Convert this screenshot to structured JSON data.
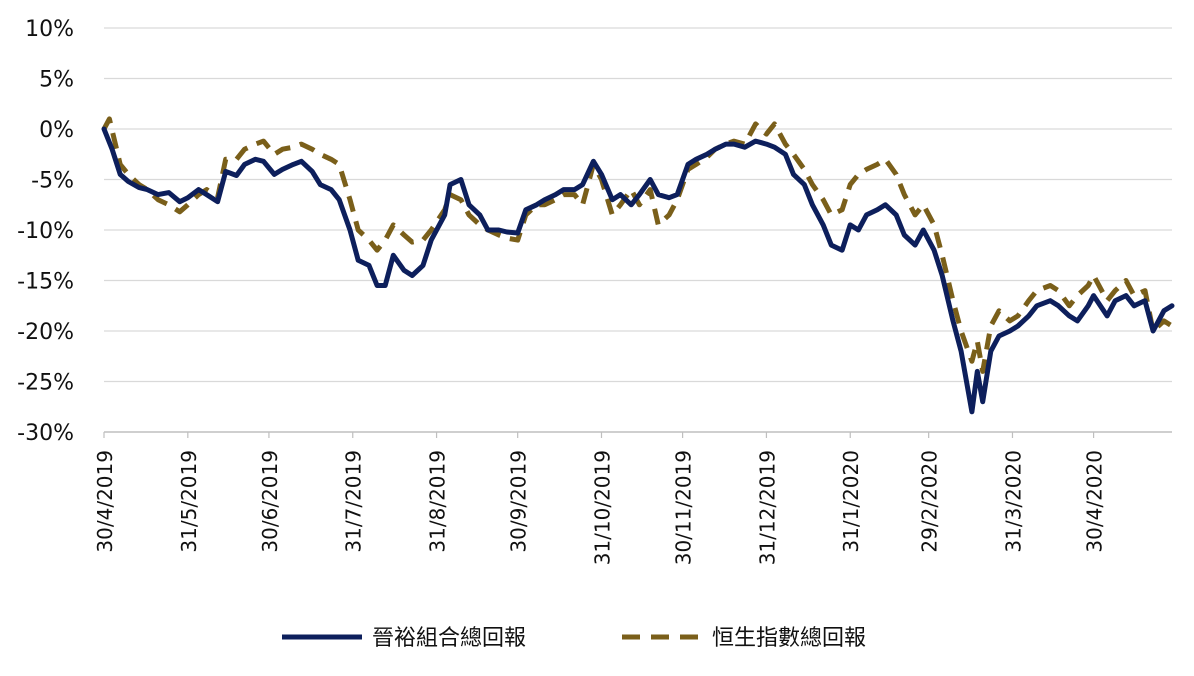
{
  "chart_data": {
    "type": "line",
    "title": "",
    "xlabel": "",
    "ylabel": "",
    "y_unit": "%",
    "ylim": [
      -30,
      10
    ],
    "yticks": [
      10,
      5,
      0,
      -5,
      -10,
      -15,
      -20,
      -25,
      -30
    ],
    "ytick_labels": [
      "10%",
      "5%",
      "0%",
      "-5%",
      "-10%",
      "-15%",
      "-20%",
      "-25%",
      "-30%"
    ],
    "grid": "horizontal",
    "legend_position": "bottom-center",
    "x_tick_labels": [
      "30/4/2019",
      "31/5/2019",
      "30/6/2019",
      "31/7/2019",
      "31/8/2019",
      "30/9/2019",
      "31/10/2019",
      "30/11/2019",
      "31/12/2019",
      "31/1/2020",
      "29/2/2020",
      "31/3/2020",
      "30/4/2020"
    ],
    "x_start": "2019-04-30",
    "x_end": "2020-05-29",
    "series": [
      {
        "name": "晉裕組合總回報",
        "color": "#0d1f5c",
        "style": "solid",
        "points": [
          [
            "2019-04-30",
            0
          ],
          [
            "2019-05-03",
            -2
          ],
          [
            "2019-05-06",
            -4.5
          ],
          [
            "2019-05-09",
            -5.2
          ],
          [
            "2019-05-13",
            -5.8
          ],
          [
            "2019-05-16",
            -6
          ],
          [
            "2019-05-20",
            -6.5
          ],
          [
            "2019-05-24",
            -6.3
          ],
          [
            "2019-05-28",
            -7.2
          ],
          [
            "2019-05-31",
            -6.8
          ],
          [
            "2019-06-04",
            -6
          ],
          [
            "2019-06-07",
            -6.5
          ],
          [
            "2019-06-11",
            -7.2
          ],
          [
            "2019-06-14",
            -4.2
          ],
          [
            "2019-06-18",
            -4.6
          ],
          [
            "2019-06-21",
            -3.5
          ],
          [
            "2019-06-25",
            -3
          ],
          [
            "2019-06-28",
            -3.2
          ],
          [
            "2019-07-02",
            -4.5
          ],
          [
            "2019-07-05",
            -4
          ],
          [
            "2019-07-09",
            -3.5
          ],
          [
            "2019-07-12",
            -3.2
          ],
          [
            "2019-07-16",
            -4.2
          ],
          [
            "2019-07-19",
            -5.5
          ],
          [
            "2019-07-23",
            -6
          ],
          [
            "2019-07-26",
            -7
          ],
          [
            "2019-07-30",
            -10
          ],
          [
            "2019-08-02",
            -13
          ],
          [
            "2019-08-06",
            -13.5
          ],
          [
            "2019-08-09",
            -15.5
          ],
          [
            "2019-08-12",
            -15.5
          ],
          [
            "2019-08-15",
            -12.5
          ],
          [
            "2019-08-19",
            -14
          ],
          [
            "2019-08-22",
            -14.5
          ],
          [
            "2019-08-26",
            -13.5
          ],
          [
            "2019-08-29",
            -11
          ],
          [
            "2019-09-03",
            -8.5
          ],
          [
            "2019-09-05",
            -5.5
          ],
          [
            "2019-09-09",
            -5
          ],
          [
            "2019-09-12",
            -7.5
          ],
          [
            "2019-09-16",
            -8.5
          ],
          [
            "2019-09-19",
            -10
          ],
          [
            "2019-09-23",
            -10
          ],
          [
            "2019-09-26",
            -10.2
          ],
          [
            "2019-09-30",
            -10.3
          ],
          [
            "2019-10-03",
            -8
          ],
          [
            "2019-10-07",
            -7.5
          ],
          [
            "2019-10-10",
            -7
          ],
          [
            "2019-10-14",
            -6.5
          ],
          [
            "2019-10-17",
            -6
          ],
          [
            "2019-10-21",
            -6
          ],
          [
            "2019-10-24",
            -5.5
          ],
          [
            "2019-10-28",
            -3.2
          ],
          [
            "2019-10-31",
            -4.5
          ],
          [
            "2019-11-04",
            -7
          ],
          [
            "2019-11-07",
            -6.5
          ],
          [
            "2019-11-11",
            -7.5
          ],
          [
            "2019-11-14",
            -6.5
          ],
          [
            "2019-11-18",
            -5
          ],
          [
            "2019-11-21",
            -6.5
          ],
          [
            "2019-11-25",
            -6.8
          ],
          [
            "2019-11-28",
            -6.5
          ],
          [
            "2019-12-02",
            -3.5
          ],
          [
            "2019-12-05",
            -3
          ],
          [
            "2019-12-09",
            -2.5
          ],
          [
            "2019-12-12",
            -2
          ],
          [
            "2019-12-16",
            -1.5
          ],
          [
            "2019-12-19",
            -1.5
          ],
          [
            "2019-12-23",
            -1.8
          ],
          [
            "2019-12-27",
            -1.2
          ],
          [
            "2019-12-31",
            -1.5
          ],
          [
            "2020-01-03",
            -1.8
          ],
          [
            "2020-01-07",
            -2.5
          ],
          [
            "2020-01-10",
            -4.5
          ],
          [
            "2020-01-14",
            -5.5
          ],
          [
            "2020-01-17",
            -7.5
          ],
          [
            "2020-01-21",
            -9.5
          ],
          [
            "2020-01-24",
            -11.5
          ],
          [
            "2020-01-28",
            -12
          ],
          [
            "2020-01-31",
            -9.5
          ],
          [
            "2020-02-03",
            -10
          ],
          [
            "2020-02-06",
            -8.5
          ],
          [
            "2020-02-10",
            -8
          ],
          [
            "2020-02-13",
            -7.5
          ],
          [
            "2020-02-17",
            -8.5
          ],
          [
            "2020-02-20",
            -10.5
          ],
          [
            "2020-02-24",
            -11.5
          ],
          [
            "2020-02-27",
            -10
          ],
          [
            "2020-03-02",
            -12
          ],
          [
            "2020-03-05",
            -14.5
          ],
          [
            "2020-03-09",
            -19
          ],
          [
            "2020-03-12",
            -22
          ],
          [
            "2020-03-16",
            -28
          ],
          [
            "2020-03-18",
            -24
          ],
          [
            "2020-03-20",
            -27
          ],
          [
            "2020-03-23",
            -22
          ],
          [
            "2020-03-26",
            -20.5
          ],
          [
            "2020-03-30",
            -20
          ],
          [
            "2020-04-02",
            -19.5
          ],
          [
            "2020-04-06",
            -18.5
          ],
          [
            "2020-04-09",
            -17.5
          ],
          [
            "2020-04-14",
            -17
          ],
          [
            "2020-04-17",
            -17.5
          ],
          [
            "2020-04-21",
            -18.5
          ],
          [
            "2020-04-24",
            -19
          ],
          [
            "2020-04-28",
            -17.5
          ],
          [
            "2020-04-30",
            -16.5
          ],
          [
            "2020-05-05",
            -18.5
          ],
          [
            "2020-05-08",
            -17
          ],
          [
            "2020-05-12",
            -16.5
          ],
          [
            "2020-05-15",
            -17.5
          ],
          [
            "2020-05-19",
            -17
          ],
          [
            "2020-05-22",
            -20
          ],
          [
            "2020-05-26",
            -18
          ],
          [
            "2020-05-29",
            -17.5
          ]
        ]
      },
      {
        "name": "恒生指數總回報",
        "color": "#7a5f1a",
        "style": "dashed",
        "points": [
          [
            "2019-04-30",
            0
          ],
          [
            "2019-05-02",
            1
          ],
          [
            "2019-05-06",
            -3.5
          ],
          [
            "2019-05-09",
            -4.5
          ],
          [
            "2019-05-13",
            -5.5
          ],
          [
            "2019-05-16",
            -6
          ],
          [
            "2019-05-20",
            -7
          ],
          [
            "2019-05-24",
            -7.5
          ],
          [
            "2019-05-28",
            -8.2
          ],
          [
            "2019-05-31",
            -7.5
          ],
          [
            "2019-06-04",
            -6.5
          ],
          [
            "2019-06-07",
            -6
          ],
          [
            "2019-06-11",
            -6.8
          ],
          [
            "2019-06-14",
            -3
          ],
          [
            "2019-06-18",
            -3
          ],
          [
            "2019-06-21",
            -2
          ],
          [
            "2019-06-25",
            -1.5
          ],
          [
            "2019-06-28",
            -1.2
          ],
          [
            "2019-07-02",
            -2.5
          ],
          [
            "2019-07-05",
            -2
          ],
          [
            "2019-07-09",
            -1.8
          ],
          [
            "2019-07-12",
            -1.5
          ],
          [
            "2019-07-16",
            -2
          ],
          [
            "2019-07-19",
            -2.5
          ],
          [
            "2019-07-23",
            -3
          ],
          [
            "2019-07-26",
            -3.5
          ],
          [
            "2019-07-30",
            -7
          ],
          [
            "2019-08-02",
            -10
          ],
          [
            "2019-08-06",
            -11
          ],
          [
            "2019-08-09",
            -12
          ],
          [
            "2019-08-12",
            -11
          ],
          [
            "2019-08-15",
            -9.5
          ],
          [
            "2019-08-19",
            -10.5
          ],
          [
            "2019-08-22",
            -11.2
          ],
          [
            "2019-08-26",
            -11
          ],
          [
            "2019-08-29",
            -10
          ],
          [
            "2019-09-03",
            -8
          ],
          [
            "2019-09-05",
            -6.5
          ],
          [
            "2019-09-09",
            -7
          ],
          [
            "2019-09-12",
            -8.5
          ],
          [
            "2019-09-16",
            -9.5
          ],
          [
            "2019-09-19",
            -10
          ],
          [
            "2019-09-23",
            -10.5
          ],
          [
            "2019-09-26",
            -10.8
          ],
          [
            "2019-09-30",
            -11
          ],
          [
            "2019-10-03",
            -8.5
          ],
          [
            "2019-10-07",
            -7.5
          ],
          [
            "2019-10-10",
            -7.5
          ],
          [
            "2019-10-14",
            -7
          ],
          [
            "2019-10-17",
            -6.5
          ],
          [
            "2019-10-21",
            -6.5
          ],
          [
            "2019-10-24",
            -7.5
          ],
          [
            "2019-10-28",
            -3.5
          ],
          [
            "2019-10-31",
            -5
          ],
          [
            "2019-11-04",
            -8.5
          ],
          [
            "2019-11-07",
            -7.5
          ],
          [
            "2019-11-11",
            -6
          ],
          [
            "2019-11-14",
            -7.5
          ],
          [
            "2019-11-18",
            -6
          ],
          [
            "2019-11-21",
            -9.5
          ],
          [
            "2019-11-25",
            -8.5
          ],
          [
            "2019-11-28",
            -7
          ],
          [
            "2019-12-02",
            -4
          ],
          [
            "2019-12-05",
            -3.5
          ],
          [
            "2019-12-09",
            -2.8
          ],
          [
            "2019-12-12",
            -2
          ],
          [
            "2019-12-16",
            -1.5
          ],
          [
            "2019-12-19",
            -1.2
          ],
          [
            "2019-12-23",
            -1.5
          ],
          [
            "2019-12-27",
            0.5
          ],
          [
            "2019-12-31",
            -0.5
          ],
          [
            "2020-01-03",
            0.5
          ],
          [
            "2020-01-07",
            -1.5
          ],
          [
            "2020-01-10",
            -2.5
          ],
          [
            "2020-01-14",
            -4
          ],
          [
            "2020-01-17",
            -5.5
          ],
          [
            "2020-01-21",
            -7
          ],
          [
            "2020-01-24",
            -8.5
          ],
          [
            "2020-01-28",
            -8
          ],
          [
            "2020-01-31",
            -5.5
          ],
          [
            "2020-02-03",
            -4.5
          ],
          [
            "2020-02-06",
            -4
          ],
          [
            "2020-02-10",
            -3.5
          ],
          [
            "2020-02-13",
            -3
          ],
          [
            "2020-02-17",
            -4.5
          ],
          [
            "2020-02-20",
            -6.5
          ],
          [
            "2020-02-24",
            -8.5
          ],
          [
            "2020-02-27",
            -7.5
          ],
          [
            "2020-03-02",
            -9.5
          ],
          [
            "2020-03-05",
            -12.5
          ],
          [
            "2020-03-09",
            -17
          ],
          [
            "2020-03-12",
            -20
          ],
          [
            "2020-03-16",
            -23
          ],
          [
            "2020-03-18",
            -21
          ],
          [
            "2020-03-20",
            -24
          ],
          [
            "2020-03-23",
            -19.5
          ],
          [
            "2020-03-26",
            -18
          ],
          [
            "2020-03-30",
            -19
          ],
          [
            "2020-04-02",
            -18.5
          ],
          [
            "2020-04-06",
            -17
          ],
          [
            "2020-04-09",
            -16
          ],
          [
            "2020-04-14",
            -15.5
          ],
          [
            "2020-04-17",
            -16
          ],
          [
            "2020-04-21",
            -17.5
          ],
          [
            "2020-04-24",
            -16.5
          ],
          [
            "2020-04-28",
            -15.5
          ],
          [
            "2020-04-30",
            -14.5
          ],
          [
            "2020-05-05",
            -17
          ],
          [
            "2020-05-08",
            -16
          ],
          [
            "2020-05-12",
            -15
          ],
          [
            "2020-05-15",
            -16.5
          ],
          [
            "2020-05-19",
            -16
          ],
          [
            "2020-05-22",
            -20
          ],
          [
            "2020-05-26",
            -19
          ],
          [
            "2020-05-29",
            -19.5
          ]
        ]
      }
    ]
  }
}
